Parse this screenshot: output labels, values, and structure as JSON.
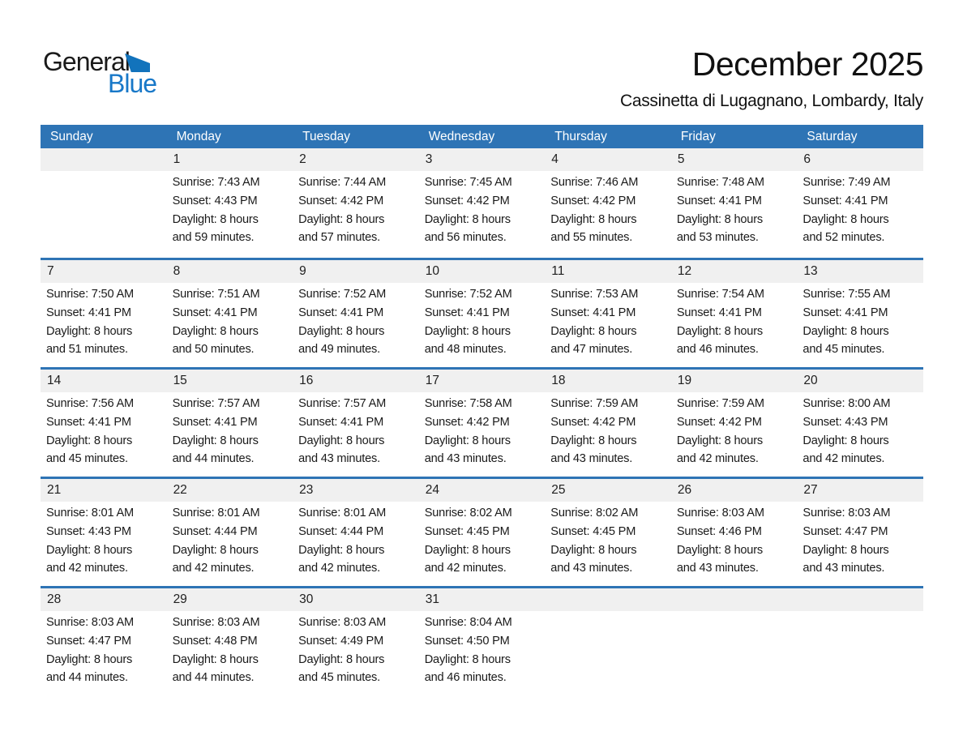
{
  "logo": {
    "general": "General",
    "blue": "Blue"
  },
  "header": {
    "title": "December 2025",
    "subtitle": "Cassinetta di Lugagnano, Lombardy, Italy"
  },
  "labels": {
    "sunrise": "Sunrise:",
    "sunset": "Sunset:",
    "daylight": "Daylight:"
  },
  "colors": {
    "header_blue": "#2E74B5",
    "week_border_blue": "#2E74B5",
    "day_band_gray": "#F0F0F0",
    "logo_text_blue": "#1878C8",
    "logo_triangle_blue": "#1273BC",
    "text_dark": "#1a1a1a"
  },
  "calendar": {
    "weekdays": [
      "Sunday",
      "Monday",
      "Tuesday",
      "Wednesday",
      "Thursday",
      "Friday",
      "Saturday"
    ],
    "weeks": [
      [
        null,
        {
          "day": 1,
          "sunrise": "7:43 AM",
          "sunset": "4:43 PM",
          "daylight": "8 hours and 59 minutes."
        },
        {
          "day": 2,
          "sunrise": "7:44 AM",
          "sunset": "4:42 PM",
          "daylight": "8 hours and 57 minutes."
        },
        {
          "day": 3,
          "sunrise": "7:45 AM",
          "sunset": "4:42 PM",
          "daylight": "8 hours and 56 minutes."
        },
        {
          "day": 4,
          "sunrise": "7:46 AM",
          "sunset": "4:42 PM",
          "daylight": "8 hours and 55 minutes."
        },
        {
          "day": 5,
          "sunrise": "7:48 AM",
          "sunset": "4:41 PM",
          "daylight": "8 hours and 53 minutes."
        },
        {
          "day": 6,
          "sunrise": "7:49 AM",
          "sunset": "4:41 PM",
          "daylight": "8 hours and 52 minutes."
        }
      ],
      [
        {
          "day": 7,
          "sunrise": "7:50 AM",
          "sunset": "4:41 PM",
          "daylight": "8 hours and 51 minutes."
        },
        {
          "day": 8,
          "sunrise": "7:51 AM",
          "sunset": "4:41 PM",
          "daylight": "8 hours and 50 minutes."
        },
        {
          "day": 9,
          "sunrise": "7:52 AM",
          "sunset": "4:41 PM",
          "daylight": "8 hours and 49 minutes."
        },
        {
          "day": 10,
          "sunrise": "7:52 AM",
          "sunset": "4:41 PM",
          "daylight": "8 hours and 48 minutes."
        },
        {
          "day": 11,
          "sunrise": "7:53 AM",
          "sunset": "4:41 PM",
          "daylight": "8 hours and 47 minutes."
        },
        {
          "day": 12,
          "sunrise": "7:54 AM",
          "sunset": "4:41 PM",
          "daylight": "8 hours and 46 minutes."
        },
        {
          "day": 13,
          "sunrise": "7:55 AM",
          "sunset": "4:41 PM",
          "daylight": "8 hours and 45 minutes."
        }
      ],
      [
        {
          "day": 14,
          "sunrise": "7:56 AM",
          "sunset": "4:41 PM",
          "daylight": "8 hours and 45 minutes."
        },
        {
          "day": 15,
          "sunrise": "7:57 AM",
          "sunset": "4:41 PM",
          "daylight": "8 hours and 44 minutes."
        },
        {
          "day": 16,
          "sunrise": "7:57 AM",
          "sunset": "4:41 PM",
          "daylight": "8 hours and 43 minutes."
        },
        {
          "day": 17,
          "sunrise": "7:58 AM",
          "sunset": "4:42 PM",
          "daylight": "8 hours and 43 minutes."
        },
        {
          "day": 18,
          "sunrise": "7:59 AM",
          "sunset": "4:42 PM",
          "daylight": "8 hours and 43 minutes."
        },
        {
          "day": 19,
          "sunrise": "7:59 AM",
          "sunset": "4:42 PM",
          "daylight": "8 hours and 42 minutes."
        },
        {
          "day": 20,
          "sunrise": "8:00 AM",
          "sunset": "4:43 PM",
          "daylight": "8 hours and 42 minutes."
        }
      ],
      [
        {
          "day": 21,
          "sunrise": "8:01 AM",
          "sunset": "4:43 PM",
          "daylight": "8 hours and 42 minutes."
        },
        {
          "day": 22,
          "sunrise": "8:01 AM",
          "sunset": "4:44 PM",
          "daylight": "8 hours and 42 minutes."
        },
        {
          "day": 23,
          "sunrise": "8:01 AM",
          "sunset": "4:44 PM",
          "daylight": "8 hours and 42 minutes."
        },
        {
          "day": 24,
          "sunrise": "8:02 AM",
          "sunset": "4:45 PM",
          "daylight": "8 hours and 42 minutes."
        },
        {
          "day": 25,
          "sunrise": "8:02 AM",
          "sunset": "4:45 PM",
          "daylight": "8 hours and 43 minutes."
        },
        {
          "day": 26,
          "sunrise": "8:03 AM",
          "sunset": "4:46 PM",
          "daylight": "8 hours and 43 minutes."
        },
        {
          "day": 27,
          "sunrise": "8:03 AM",
          "sunset": "4:47 PM",
          "daylight": "8 hours and 43 minutes."
        }
      ],
      [
        {
          "day": 28,
          "sunrise": "8:03 AM",
          "sunset": "4:47 PM",
          "daylight": "8 hours and 44 minutes."
        },
        {
          "day": 29,
          "sunrise": "8:03 AM",
          "sunset": "4:48 PM",
          "daylight": "8 hours and 44 minutes."
        },
        {
          "day": 30,
          "sunrise": "8:03 AM",
          "sunset": "4:49 PM",
          "daylight": "8 hours and 45 minutes."
        },
        {
          "day": 31,
          "sunrise": "8:04 AM",
          "sunset": "4:50 PM",
          "daylight": "8 hours and 46 minutes."
        },
        null,
        null,
        null
      ]
    ]
  }
}
